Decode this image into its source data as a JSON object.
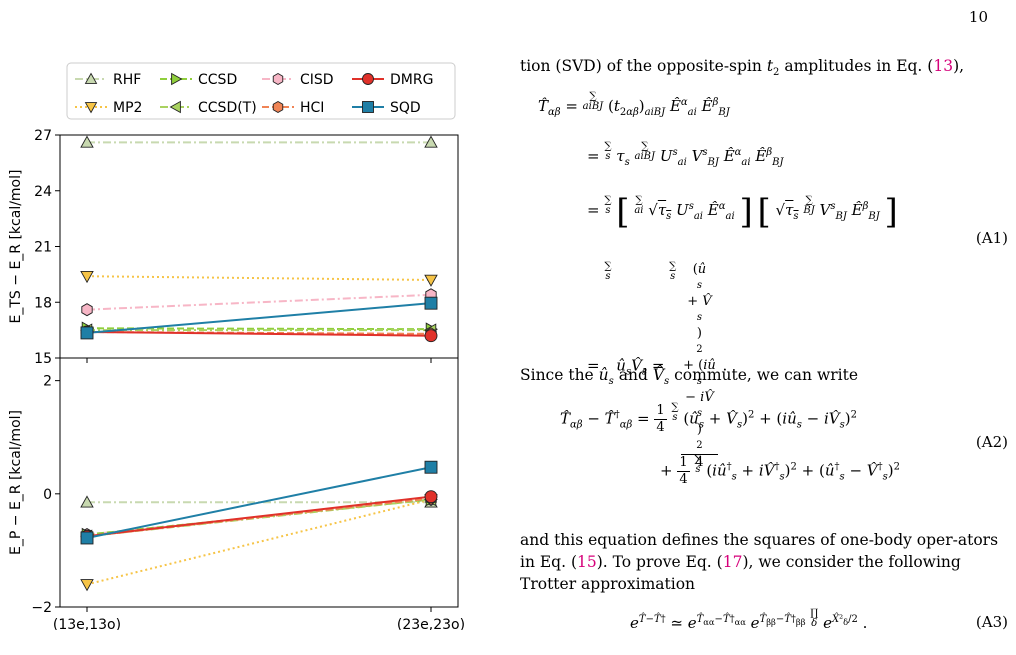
{
  "page_number": "10",
  "figure": {
    "legend": {
      "rows": [
        [
          {
            "label": "RHF",
            "color": "#c8d9b0",
            "marker": "triangle-up",
            "dash": "dashdot"
          },
          {
            "label": "CCSD",
            "color": "#8fcf3c",
            "marker": "triangle-right",
            "dash": "dashed"
          },
          {
            "label": "CISD",
            "color": "#f7b6c6",
            "marker": "hexagon",
            "dash": "dashdot"
          },
          {
            "label": "DMRG",
            "color": "#e0312a",
            "marker": "circle",
            "dash": "solid"
          }
        ],
        [
          {
            "label": "MP2",
            "color": "#f6c447",
            "marker": "triangle-down",
            "dash": "dotted"
          },
          {
            "label": "CCSD(T)",
            "color": "#a9d260",
            "marker": "triangle-left",
            "dash": "dashdot"
          },
          {
            "label": "HCI",
            "color": "#f08455",
            "marker": "hexagon",
            "dash": "dashed"
          },
          {
            "label": "SQD",
            "color": "#1f7fa6",
            "marker": "square",
            "dash": "solid"
          }
        ]
      ]
    }
  },
  "chart_data": [
    {
      "type": "line",
      "ylabel": "E_TS − E_R [kcal/mol]",
      "ylim": [
        15,
        27
      ],
      "yticks": [
        "15",
        "18",
        "21",
        "24",
        "27"
      ],
      "categories": [
        "(13e,13o)",
        "(23e,23o)"
      ],
      "series": [
        {
          "name": "RHF",
          "values": [
            26.6,
            26.6
          ]
        },
        {
          "name": "MP2",
          "values": [
            19.4,
            19.2
          ]
        },
        {
          "name": "CISD",
          "values": [
            17.6,
            18.4
          ]
        },
        {
          "name": "CCSD",
          "values": [
            16.6,
            16.55
          ]
        },
        {
          "name": "CCSD(T)",
          "values": [
            16.5,
            16.5
          ]
        },
        {
          "name": "HCI",
          "values": [
            16.4,
            16.3
          ]
        },
        {
          "name": "DMRG",
          "values": [
            16.4,
            16.2
          ]
        },
        {
          "name": "SQD",
          "values": [
            16.35,
            17.95
          ]
        }
      ]
    },
    {
      "type": "line",
      "ylabel": "E_P − E_R [kcal/mol]",
      "ylim": [
        -2,
        2.4
      ],
      "yticks": [
        "−2",
        "0",
        "2"
      ],
      "categories": [
        "(13e,13o)",
        "(23e,23o)"
      ],
      "xticklabels": [
        "(13e,13o)",
        "(23e,23o)"
      ],
      "series": [
        {
          "name": "RHF",
          "values": [
            -0.15,
            -0.15
          ]
        },
        {
          "name": "MP2",
          "values": [
            -1.6,
            -0.1
          ]
        },
        {
          "name": "CISD",
          "values": [
            -0.72,
            -0.1
          ]
        },
        {
          "name": "CCSD",
          "values": [
            -0.72,
            -0.1
          ]
        },
        {
          "name": "CCSD(T)",
          "values": [
            -0.75,
            -0.1
          ]
        },
        {
          "name": "HCI",
          "values": [
            -0.75,
            -0.08
          ]
        },
        {
          "name": "DMRG",
          "values": [
            -0.75,
            -0.05
          ]
        },
        {
          "name": "SQD",
          "values": [
            -0.78,
            0.47
          ]
        }
      ]
    }
  ],
  "text": {
    "intro": "tion (SVD) of the opposite-spin",
    "intro_tail": "amplitudes in Eq. (",
    "intro_ref": "13",
    "intro_end": "),",
    "since": "Since the",
    "since_mid": "and",
    "since_end": "commute, we can write",
    "para2_a": "and this equation defines the squares of one-body oper-ators in Eq. (",
    "para2_ref1": "15",
    "para2_b": "). To prove Eq. (",
    "para2_ref2": "17",
    "para2_c": "), we consider the following Trotter approximation",
    "eq_a1": "(A1)",
    "eq_a2": "(A2)",
    "eq_a3": "(A3)"
  }
}
